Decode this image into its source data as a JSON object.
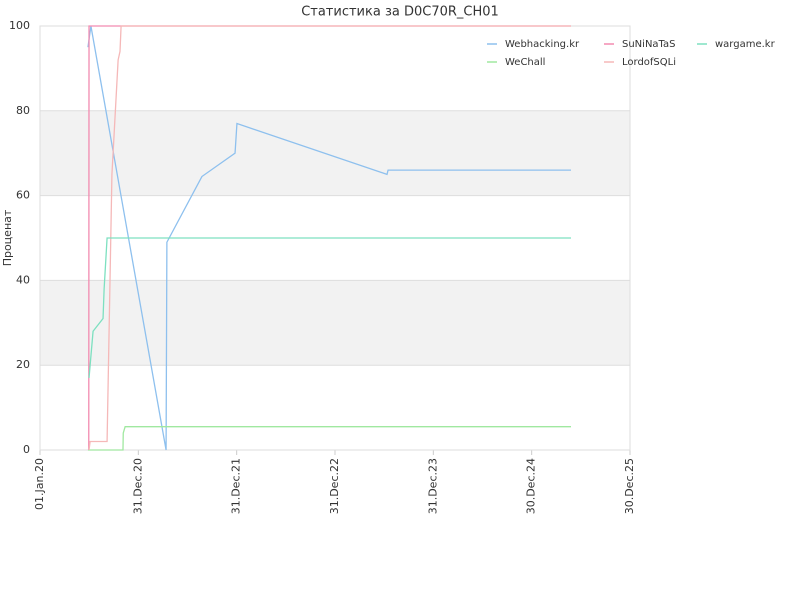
{
  "chart_data": {
    "type": "line",
    "title": "Статистика за D0C70R_CH01",
    "y_label": "Проценат",
    "xlim": [
      "2020-01-01",
      "2025-12-30"
    ],
    "xticks": [
      {
        "value": "2020-01-01",
        "label": "01.Jan.20"
      },
      {
        "value": "2020-12-31",
        "label": "31.Dec.20"
      },
      {
        "value": "2021-12-31",
        "label": "31.Dec.21"
      },
      {
        "value": "2022-12-31",
        "label": "31.Dec.22"
      },
      {
        "value": "2023-12-31",
        "label": "31.Dec.23"
      },
      {
        "value": "2024-12-30",
        "label": "30.Dec.24"
      },
      {
        "value": "2025-12-30",
        "label": "30.Dec.25"
      }
    ],
    "ylim": [
      0,
      100
    ],
    "yticks": [
      0,
      20,
      40,
      60,
      80,
      100
    ],
    "grid": true,
    "legend": "upper right",
    "series": [
      {
        "name": "Webhacking.kr",
        "color": "#8ec0ee",
        "x": [
          "2020-06-27",
          "2020-07-08",
          "2021-04-13",
          "2021-04-16",
          "2021-08-24",
          "2021-12-25",
          "2022-01-01",
          "2023-07-12",
          "2023-07-16",
          "2025-05-25"
        ],
        "values": [
          95,
          100,
          0,
          49,
          64.5,
          70,
          77,
          65,
          66,
          66
        ]
      },
      {
        "name": "WeChall",
        "color": "#a0e8a0",
        "x": [
          "2020-06-27",
          "2020-11-04",
          "2020-11-05",
          "2020-11-12",
          "2025-05-25"
        ],
        "values": [
          0,
          0,
          4,
          5.5,
          5.5
        ]
      },
      {
        "name": "SuNiNaTaS",
        "color": "#f28bb0",
        "x": [
          "2020-06-30",
          "2020-07-01",
          "2025-05-25"
        ],
        "values": [
          0,
          100,
          100
        ]
      },
      {
        "name": "LordofSQLi",
        "color": "#f5b8b8",
        "x": [
          "2020-07-01",
          "2020-07-05",
          "2020-09-06",
          "2020-09-24",
          "2020-10-17",
          "2020-10-24",
          "2020-10-28",
          "2025-05-25"
        ],
        "values": [
          0,
          2,
          2,
          65,
          92,
          94,
          100,
          100
        ]
      },
      {
        "name": "wargame.kr",
        "color": "#7de0c0",
        "x": [
          "2020-07-01",
          "2020-07-16",
          "2020-08-22",
          "2020-08-26",
          "2020-09-06",
          "2025-05-25"
        ],
        "values": [
          17,
          28,
          31,
          38,
          50,
          50
        ]
      }
    ]
  }
}
